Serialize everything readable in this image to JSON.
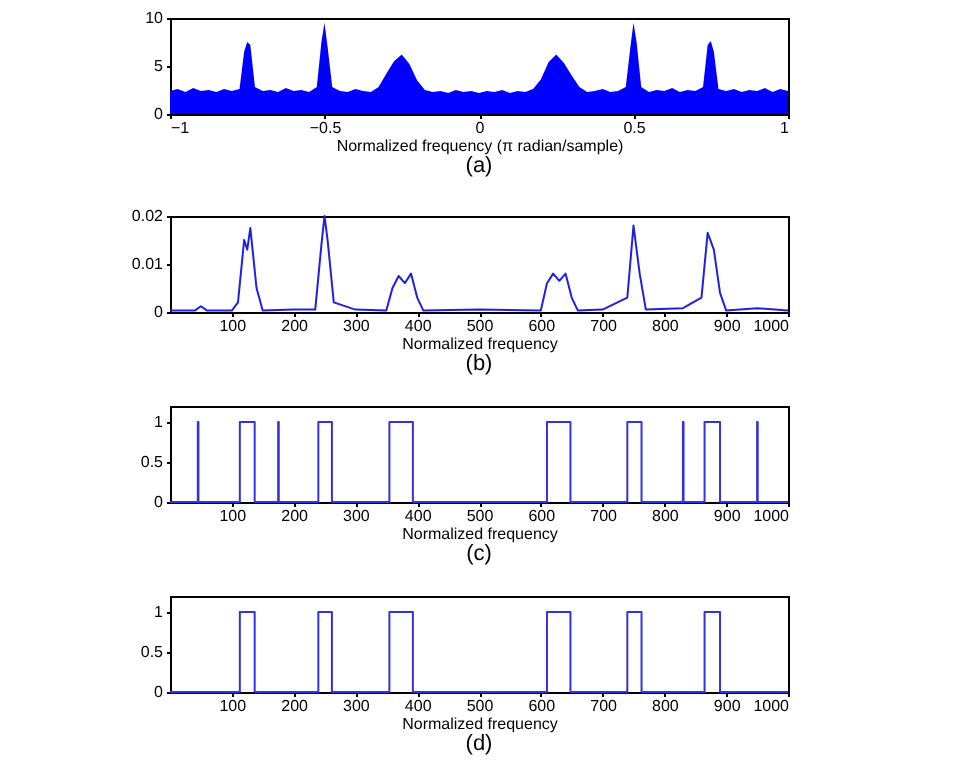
{
  "chart_data": [
    {
      "type": "area",
      "title": "(a)",
      "xlabel": "Normalized frequency (π radian/sample)",
      "color": "#0000ff",
      "xlim": [
        -1,
        1
      ],
      "xticks": [
        {
          "value": -1,
          "label": "−1"
        },
        {
          "value": -0.5,
          "label": "−0.5"
        },
        0,
        0.5,
        1
      ],
      "ylim": [
        0,
        10
      ],
      "yticks": [
        0,
        5,
        10
      ],
      "x": [
        -1,
        -0.975,
        -0.95,
        -0.925,
        -0.9,
        -0.875,
        -0.85,
        -0.825,
        -0.8,
        -0.775,
        -0.76,
        -0.75,
        -0.74,
        -0.725,
        -0.7,
        -0.675,
        -0.65,
        -0.625,
        -0.6,
        -0.575,
        -0.55,
        -0.525,
        -0.51,
        -0.5,
        -0.49,
        -0.475,
        -0.45,
        -0.425,
        -0.4,
        -0.375,
        -0.35,
        -0.325,
        -0.3,
        -0.275,
        -0.25,
        -0.225,
        -0.2,
        -0.175,
        -0.15,
        -0.125,
        -0.1,
        -0.075,
        -0.05,
        -0.025,
        0,
        0.025,
        0.05,
        0.075,
        0.1,
        0.125,
        0.15,
        0.175,
        0.2,
        0.225,
        0.25,
        0.275,
        0.3,
        0.325,
        0.35,
        0.375,
        0.4,
        0.425,
        0.45,
        0.475,
        0.49,
        0.5,
        0.51,
        0.525,
        0.55,
        0.575,
        0.6,
        0.625,
        0.65,
        0.675,
        0.7,
        0.725,
        0.74,
        0.75,
        0.76,
        0.775,
        0.8,
        0.825,
        0.85,
        0.875,
        0.9,
        0.925,
        0.95,
        0.975,
        1
      ],
      "values": [
        2.4,
        2.6,
        2.3,
        2.7,
        2.4,
        2.5,
        2.3,
        2.6,
        2.4,
        2.6,
        6.5,
        7.5,
        7.2,
        2.8,
        2.4,
        2.5,
        2.3,
        2.7,
        2.4,
        2.5,
        2.3,
        2.8,
        7.5,
        9.5,
        7,
        2.8,
        2.4,
        2.3,
        2.6,
        2.4,
        2.3,
        2.8,
        4.2,
        5.5,
        6.2,
        5.2,
        3.5,
        2.5,
        2.3,
        2.4,
        2.2,
        2.5,
        2.3,
        2.4,
        2.2,
        2.4,
        2.3,
        2.5,
        2.2,
        2.4,
        2.3,
        2.6,
        3.6,
        5.4,
        6.2,
        5.3,
        4,
        2.8,
        2.3,
        2.4,
        2.6,
        2.3,
        2.4,
        2.8,
        7,
        9.5,
        7.5,
        2.8,
        2.3,
        2.5,
        2.4,
        2.7,
        2.3,
        2.5,
        2.4,
        2.8,
        7.2,
        7.6,
        6.5,
        2.6,
        2.4,
        2.6,
        2.3,
        2.5,
        2.4,
        2.7,
        2.3,
        2.6,
        2.4
      ]
    },
    {
      "type": "line",
      "title": "(b)",
      "xlabel": "Normalized frequency",
      "color": "#2020e0",
      "xlim": [
        0,
        1000
      ],
      "xticks": [
        100,
        200,
        300,
        400,
        500,
        600,
        700,
        800,
        900,
        1000
      ],
      "ylim": [
        0,
        0.02
      ],
      "yticks": [
        0,
        0.01,
        0.02
      ],
      "x": [
        0,
        40,
        50,
        60,
        100,
        110,
        120,
        125,
        130,
        140,
        150,
        200,
        235,
        245,
        250,
        255,
        265,
        300,
        350,
        360,
        370,
        380,
        390,
        400,
        410,
        500,
        600,
        610,
        620,
        630,
        640,
        650,
        660,
        700,
        740,
        750,
        760,
        770,
        830,
        860,
        870,
        880,
        890,
        900,
        950,
        1000
      ],
      "values": [
        0.0003,
        0.0003,
        0.0012,
        0.0003,
        0.0003,
        0.002,
        0.015,
        0.013,
        0.0175,
        0.005,
        0.0003,
        0.0005,
        0.0005,
        0.014,
        0.02,
        0.015,
        0.002,
        0.0005,
        0.0003,
        0.005,
        0.0075,
        0.006,
        0.008,
        0.003,
        0.0003,
        0.0005,
        0.0003,
        0.006,
        0.008,
        0.0065,
        0.008,
        0.003,
        0.0003,
        0.0005,
        0.003,
        0.018,
        0.008,
        0.0005,
        0.0008,
        0.003,
        0.0165,
        0.013,
        0.004,
        0.0003,
        0.0008,
        0.0003
      ]
    },
    {
      "type": "step",
      "title": "(c)",
      "xlabel": "Normalized frequency",
      "color": "#3333dd",
      "xlim": [
        0,
        1000
      ],
      "xticks": [
        100,
        200,
        300,
        400,
        500,
        600,
        700,
        800,
        900,
        1000
      ],
      "ylim": [
        0,
        1.2
      ],
      "yticks": [
        0,
        0.5,
        1
      ],
      "x": [
        0,
        45,
        46,
        113,
        137,
        175,
        176,
        240,
        262,
        355,
        393,
        610,
        648,
        740,
        763,
        830,
        831,
        865,
        890,
        950,
        951,
        1000
      ],
      "values": [
        0,
        1,
        0,
        1,
        0,
        1,
        0,
        1,
        0,
        1,
        0,
        1,
        0,
        1,
        0,
        1,
        0,
        1,
        0,
        1,
        0,
        0
      ]
    },
    {
      "type": "step",
      "title": "(d)",
      "xlabel": "Normalized frequency",
      "color": "#3333dd",
      "xlim": [
        0,
        1000
      ],
      "xticks": [
        100,
        200,
        300,
        400,
        500,
        600,
        700,
        800,
        900,
        1000
      ],
      "ylim": [
        0,
        1.2
      ],
      "yticks": [
        0,
        0.5,
        1
      ],
      "x": [
        0,
        113,
        137,
        240,
        262,
        355,
        393,
        610,
        648,
        740,
        763,
        865,
        890,
        1000
      ],
      "values": [
        0,
        1,
        0,
        1,
        0,
        1,
        0,
        1,
        0,
        1,
        0,
        1,
        0,
        0
      ]
    }
  ]
}
